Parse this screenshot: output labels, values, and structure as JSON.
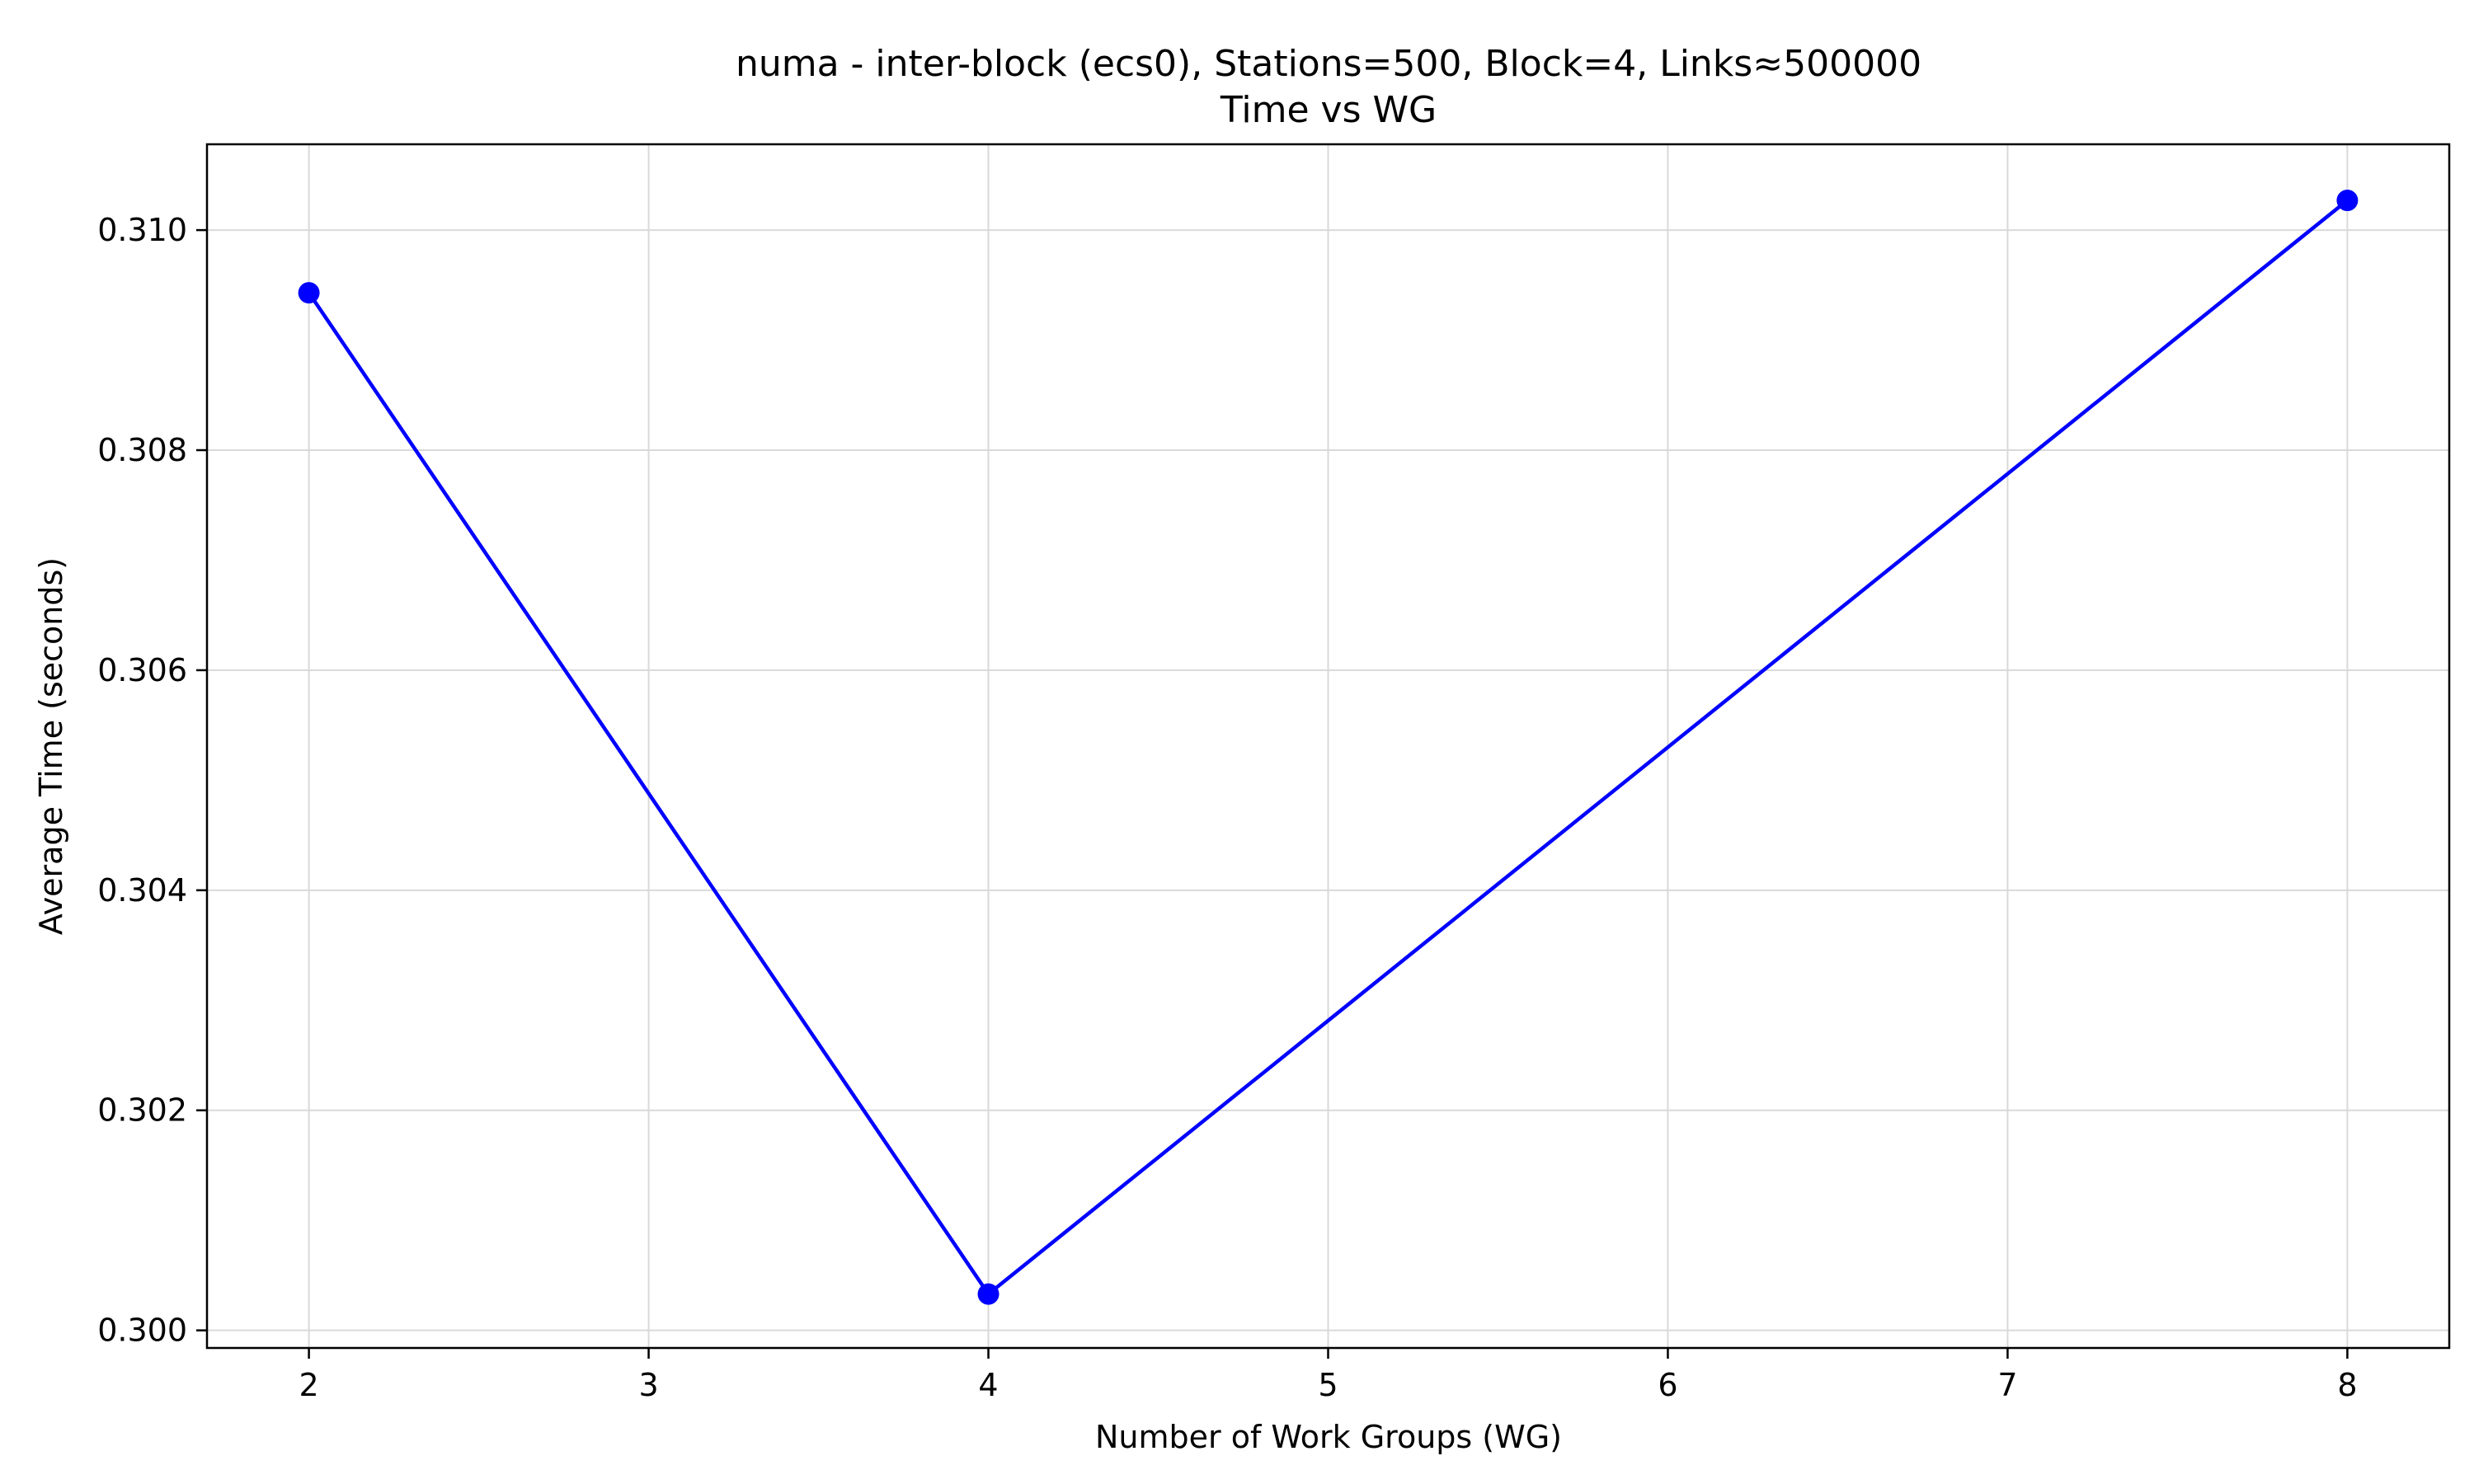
{
  "chart_data": {
    "type": "line",
    "title": "numa - inter-block (ecs0), Stations=500, Block=4, Links≈500000",
    "subtitle": "Time vs WG",
    "xlabel": "Number of Work Groups (WG)",
    "ylabel": "Average Time (seconds)",
    "xlim": [
      1.7,
      8.3
    ],
    "ylim": [
      0.29984,
      0.31078
    ],
    "x_ticks": [
      2,
      3,
      4,
      5,
      6,
      7,
      8
    ],
    "x_tick_labels": [
      "2",
      "3",
      "4",
      "5",
      "6",
      "7",
      "8"
    ],
    "y_ticks": [
      0.3,
      0.302,
      0.304,
      0.306,
      0.308,
      0.31
    ],
    "y_tick_labels": [
      "0.300",
      "0.302",
      "0.304",
      "0.306",
      "0.308",
      "0.310"
    ],
    "grid": true,
    "series": [
      {
        "color": "#0000ff",
        "marker": "circle",
        "x": [
          2,
          4,
          8
        ],
        "y": [
          0.30943,
          0.30033,
          0.31027
        ]
      }
    ]
  }
}
